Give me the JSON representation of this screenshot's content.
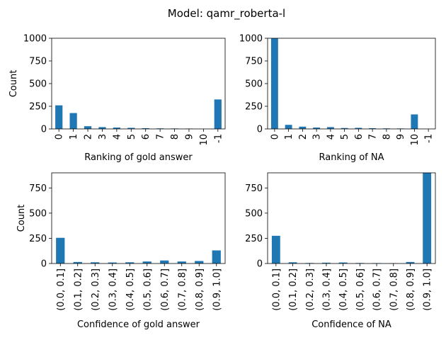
{
  "suptitle": "Model: qamr_roberta-l",
  "bar_color": "#1f77b4",
  "chart_data": [
    {
      "type": "bar",
      "title": "",
      "xlabel": "Ranking of gold answer",
      "ylabel": "Count",
      "categories": [
        "0",
        "1",
        "2",
        "3",
        "4",
        "5",
        "6",
        "7",
        "8",
        "9",
        "10",
        "-1"
      ],
      "values": [
        260,
        175,
        30,
        20,
        15,
        12,
        8,
        6,
        5,
        4,
        0,
        325
      ],
      "ylim": [
        0,
        1000
      ],
      "yticks": [
        0,
        250,
        500,
        750,
        1000
      ]
    },
    {
      "type": "bar",
      "title": "",
      "xlabel": "Ranking of NA",
      "ylabel": "",
      "categories": [
        "0",
        "1",
        "2",
        "3",
        "4",
        "5",
        "6",
        "7",
        "8",
        "9",
        "10",
        "-1"
      ],
      "values": [
        1000,
        45,
        25,
        15,
        20,
        10,
        12,
        8,
        6,
        5,
        160,
        0
      ],
      "ylim": [
        0,
        1000
      ],
      "yticks": [
        0,
        250,
        500,
        750,
        1000
      ]
    },
    {
      "type": "bar",
      "title": "",
      "xlabel": "Confidence of gold answer",
      "ylabel": "Count",
      "categories": [
        "(0.0, 0.1]",
        "(0.1, 0.2]",
        "(0.2, 0.3]",
        "(0.3, 0.4]",
        "(0.4, 0.5]",
        "(0.5, 0.6]",
        "(0.6, 0.7]",
        "(0.7, 0.8]",
        "(0.8, 0.9]",
        "(0.9, 1.0]"
      ],
      "values": [
        255,
        15,
        12,
        10,
        12,
        20,
        30,
        20,
        25,
        130
      ],
      "ylim": [
        0,
        900
      ],
      "yticks": [
        0,
        250,
        500,
        750
      ]
    },
    {
      "type": "bar",
      "title": "",
      "xlabel": "Confidence of NA",
      "ylabel": "",
      "categories": [
        "(0.0, 0.1]",
        "(0.1, 0.2]",
        "(0.2, 0.3]",
        "(0.3, 0.4]",
        "(0.4, 0.5]",
        "(0.5, 0.6]",
        "(0.6, 0.7]",
        "(0.7, 0.8]",
        "(0.8, 0.9]",
        "(0.9, 1.0]"
      ],
      "values": [
        275,
        12,
        5,
        8,
        10,
        5,
        4,
        3,
        15,
        900
      ],
      "ylim": [
        0,
        900
      ],
      "yticks": [
        0,
        250,
        500,
        750
      ]
    }
  ]
}
